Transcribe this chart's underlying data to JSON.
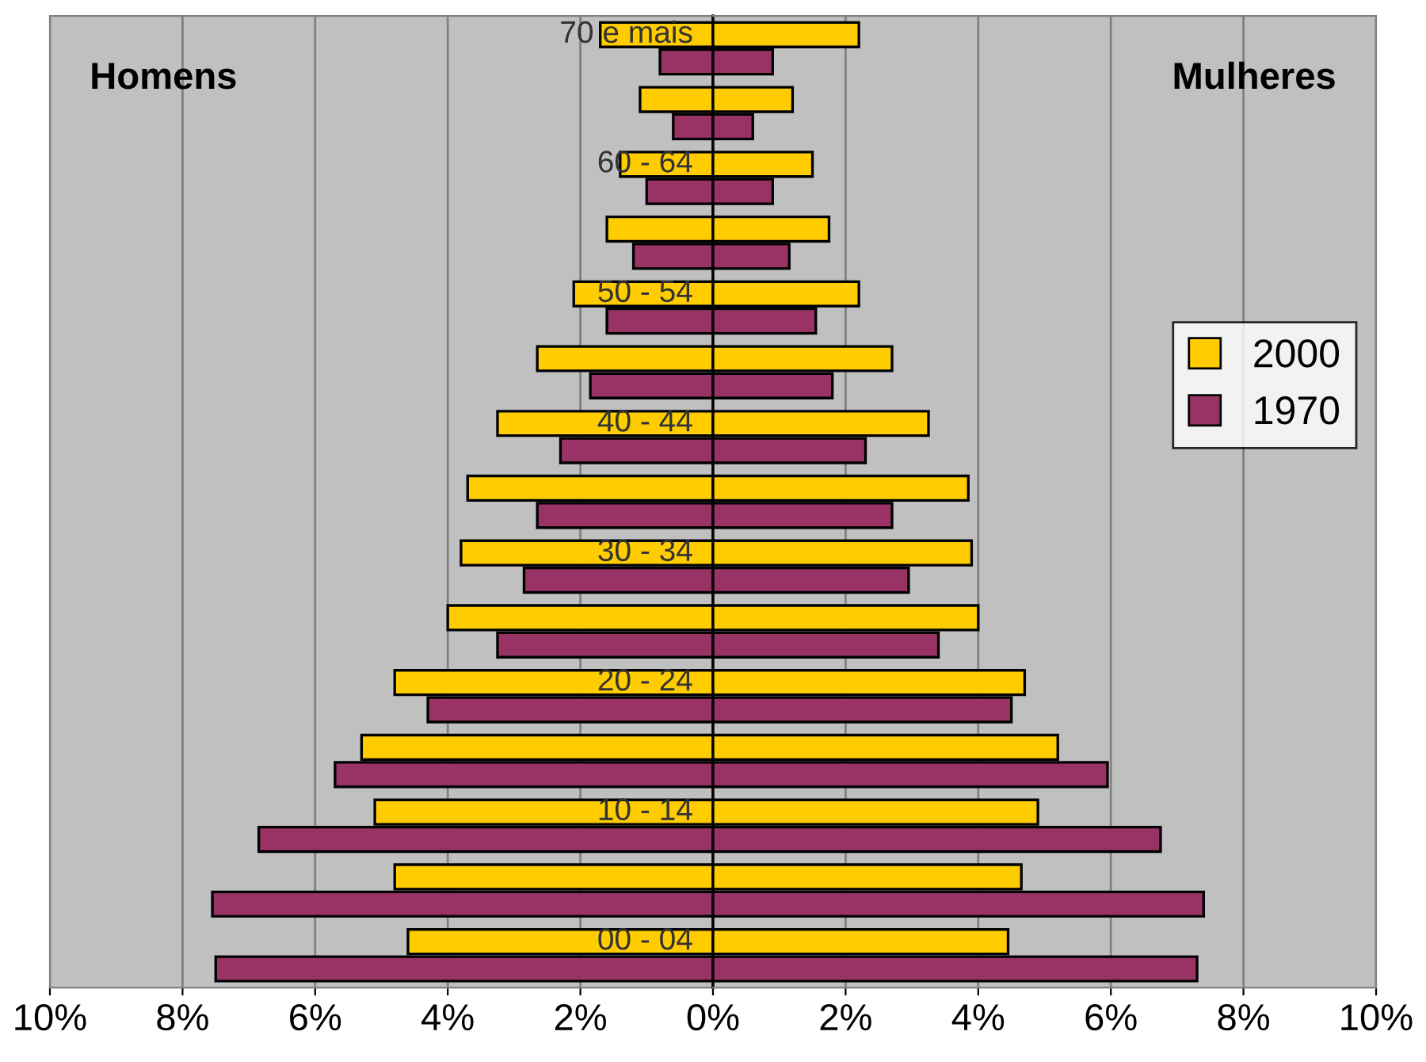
{
  "chart_data": [
    {
      "type": "bar",
      "orientation": "horizontal",
      "categories": [
        "70 e mais",
        null,
        "60 - 64",
        null,
        "50 - 54",
        null,
        "40 - 44",
        null,
        "30 - 34",
        null,
        "20 - 24",
        null,
        "10 - 14",
        null,
        "00 - 04"
      ],
      "series": [
        {
          "color": "#ffcc00",
          "values": [
            1.7,
            1.1,
            1.4,
            1.6,
            2.1,
            2.65,
            3.25,
            3.7,
            3.8,
            4.0,
            4.8,
            5.3,
            5.1,
            4.8,
            4.6
          ]
        },
        {
          "color": "#993366",
          "values": [
            0.8,
            0.6,
            1.0,
            1.2,
            1.6,
            1.85,
            2.3,
            2.65,
            2.85,
            3.25,
            4.3,
            5.7,
            6.85,
            7.55,
            7.5
          ]
        }
      ],
      "xlim": [
        10,
        0
      ],
      "xticks": [
        {
          "value": 10,
          "label": "10%"
        },
        {
          "value": 8,
          "label": "8%"
        },
        {
          "value": 6,
          "label": "6%"
        },
        {
          "value": 4,
          "label": "4%"
        },
        {
          "value": 2,
          "label": "2%"
        }
      ],
      "annotations": [
        "Homens"
      ],
      "grid": "x"
    },
    {
      "type": "bar",
      "orientation": "horizontal",
      "categories": [
        null,
        null,
        null,
        null,
        null,
        null,
        null,
        null,
        null,
        null,
        null,
        null,
        null,
        null,
        null
      ],
      "series": [
        {
          "name": "2000",
          "color": "#ffcc00",
          "values": [
            2.2,
            1.2,
            1.5,
            1.75,
            2.2,
            2.7,
            3.25,
            3.85,
            3.9,
            4.0,
            4.7,
            5.2,
            4.9,
            4.65,
            4.45
          ]
        },
        {
          "name": "1970",
          "color": "#993366",
          "values": [
            0.9,
            0.6,
            0.9,
            1.15,
            1.55,
            1.8,
            2.3,
            2.7,
            2.95,
            3.4,
            4.5,
            5.95,
            6.75,
            7.4,
            7.3
          ]
        }
      ],
      "xlim": [
        0,
        10
      ],
      "xticks": [
        {
          "value": 0,
          "label": "0%"
        },
        {
          "value": 2,
          "label": "2%"
        },
        {
          "value": 4,
          "label": "4%"
        },
        {
          "value": 6,
          "label": "6%"
        },
        {
          "value": 8,
          "label": "8%"
        },
        {
          "value": 10,
          "label": "10%"
        }
      ],
      "annotations": [
        "Mulheres"
      ],
      "grid": "x",
      "legend": "right"
    }
  ]
}
